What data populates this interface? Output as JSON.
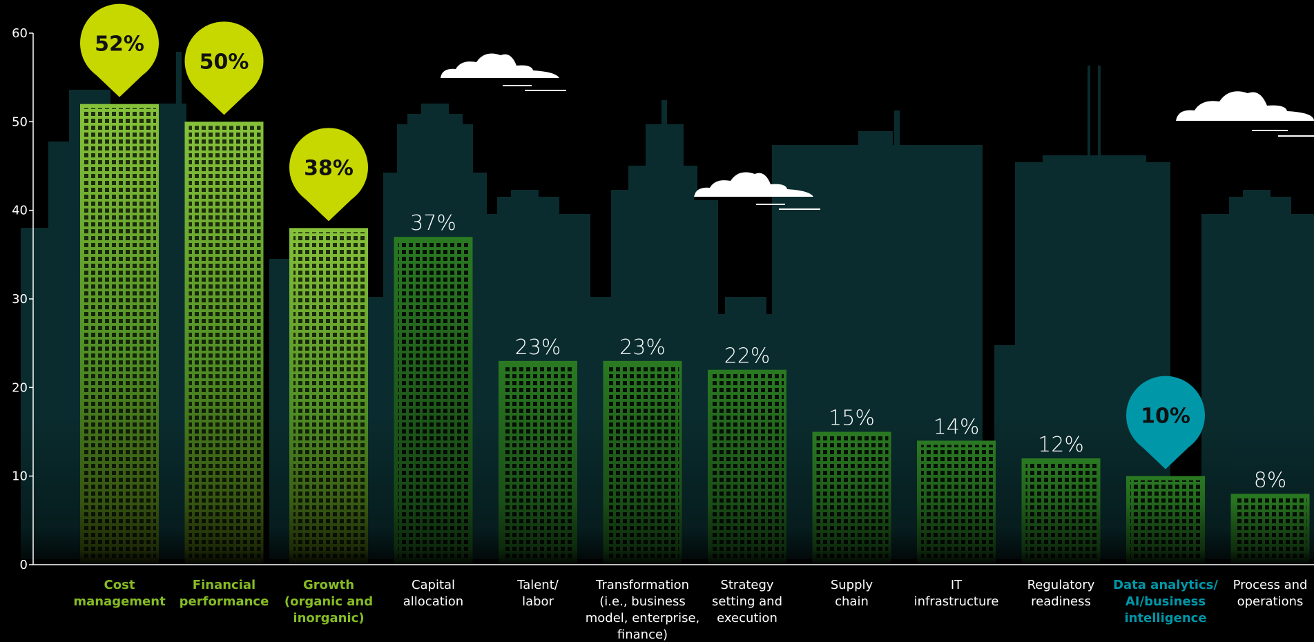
{
  "chart_data": {
    "type": "bar",
    "ylim": [
      0,
      60
    ],
    "yticks": [
      0,
      10,
      20,
      30,
      40,
      50,
      60
    ],
    "categories": [
      [
        "Cost",
        "management"
      ],
      [
        "Financial",
        "performance"
      ],
      [
        "Growth",
        "(organic and",
        "inorganic)"
      ],
      [
        "Capital",
        "allocation"
      ],
      [
        "Talent/",
        "labor"
      ],
      [
        "Transformation",
        "(i.e., business",
        "model, enterprise,",
        "finance)"
      ],
      [
        "Strategy",
        "setting and",
        "execution"
      ],
      [
        "Supply",
        "chain"
      ],
      [
        "IT",
        "infrastructure"
      ],
      [
        "Regulatory",
        "readiness"
      ],
      [
        "Data analytics/",
        "AI/business",
        "intelligence"
      ],
      [
        "Process and",
        "operations"
      ]
    ],
    "values": [
      52,
      50,
      38,
      37,
      23,
      23,
      22,
      15,
      14,
      12,
      10,
      8
    ],
    "labels": [
      "52%",
      "50%",
      "38%",
      "37%",
      "23%",
      "23%",
      "22%",
      "15%",
      "14%",
      "12%",
      "10%",
      "8%"
    ],
    "highlight": [
      "green",
      "green",
      "green",
      "none",
      "none",
      "none",
      "none",
      "none",
      "none",
      "none",
      "teal",
      "none"
    ],
    "colors": {
      "background": "#000000",
      "highlight_green": "#c6d800",
      "highlight_green_label": "#86bc25",
      "highlight_teal": "#0097a9",
      "bar_dark": "#1f5a1a",
      "bar_bright": "#7cbd35",
      "skyline": "#0c3437",
      "axis": "#ffffff",
      "text": "#ffffff"
    }
  }
}
